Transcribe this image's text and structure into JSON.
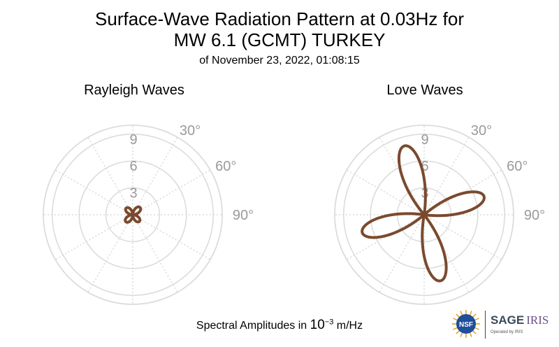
{
  "title_line1": "Surface-Wave Radiation Pattern at 0.03Hz for",
  "title_line2": "MW 6.1 (GCMT) TURKEY",
  "subtitle": "of November 23, 2022, 01:08:15",
  "caption_prefix": "Spectral Amplitudes in ",
  "caption_base": "10",
  "caption_exp": "−3",
  "caption_unit": " m/Hz",
  "logos": {
    "nsf": "NSF",
    "sage": "SAGE",
    "iris": "IRIS",
    "operated": "Operated by IRIS"
  },
  "colors": {
    "pattern": "#7a4a2e",
    "grid": "#dcdcdc",
    "labels": "#9a9a9a"
  },
  "chart_data": [
    {
      "type": "polar-line",
      "title": "Rayleigh Waves",
      "r_ticks": [
        "3",
        "6",
        "9"
      ],
      "rmax": 10,
      "angle_labels": [
        "30°",
        "60°",
        "90°"
      ],
      "grid": true,
      "series": [
        {
          "lobes": 4,
          "petals": [
            {
              "direction_deg": 45,
              "length": 1.15,
              "half_width_deg": 42
            },
            {
              "direction_deg": 135,
              "length": 1.05,
              "half_width_deg": 42
            },
            {
              "direction_deg": 225,
              "length": 1.1,
              "half_width_deg": 42
            },
            {
              "direction_deg": 315,
              "length": 1.05,
              "half_width_deg": 42
            }
          ]
        }
      ]
    },
    {
      "type": "polar-line",
      "title": "Love Waves",
      "r_ticks": [
        "3",
        "6",
        "9"
      ],
      "rmax": 10,
      "angle_labels": [
        "30°",
        "60°",
        "90°"
      ],
      "grid": true,
      "series": [
        {
          "lobes": 4,
          "petals": [
            {
              "direction_deg": 344,
              "length": 8.0,
              "half_width_deg": 24
            },
            {
              "direction_deg": 73,
              "length": 7.0,
              "half_width_deg": 24
            },
            {
              "direction_deg": 166,
              "length": 7.6,
              "half_width_deg": 24
            },
            {
              "direction_deg": 254,
              "length": 7.2,
              "half_width_deg": 24
            }
          ]
        }
      ]
    }
  ]
}
